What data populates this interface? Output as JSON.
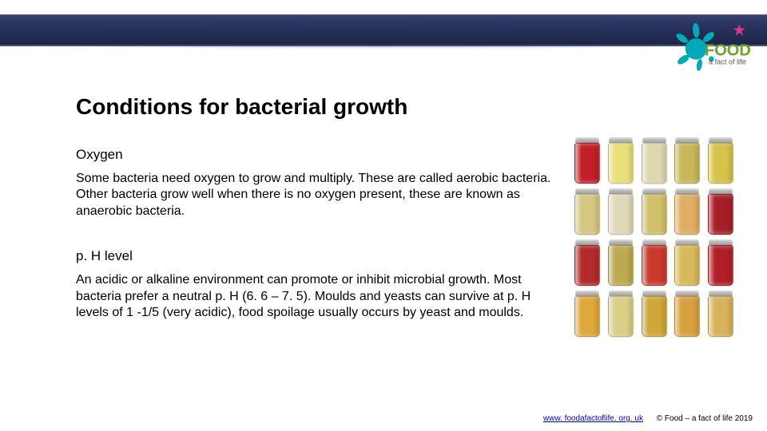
{
  "header": {
    "band_gradient_top": "#3a4470",
    "band_gradient_bottom": "#1e2548",
    "logo": {
      "splash_color": "#00a9b7",
      "text_food": "FOOD",
      "text_food_color": "#6aa329",
      "text_tag": "a fact of life",
      "text_tag_color": "#555555",
      "star_color": "#d63a84"
    }
  },
  "title": "Conditions for bacterial growth",
  "sections": [
    {
      "heading": "Oxygen",
      "body": "Some bacteria need oxygen to grow and multiply. These are called aerobic bacteria. Other bacteria grow well when there is no oxygen present, these are known as anaerobic bacteria."
    },
    {
      "heading": "p. H level",
      "body": "An acidic or alkaline environment can promote or inhibit microbial growth. Most bacteria prefer a neutral p. H (6. 6 – 7. 5).  Moulds and yeasts can survive at p. H levels of 1 -1/5 (very acidic), food spoilage usually occurs by yeast and moulds."
    }
  ],
  "jars": {
    "rows": 4,
    "cols": 5,
    "lid_color": "#b0b0b0",
    "colors": [
      "#c21f2a",
      "#eadf7a",
      "#e0d7b0",
      "#c6b85a",
      "#d7c24a",
      "#d4c780",
      "#e0d9b8",
      "#d0c06a",
      "#dfae63",
      "#a61f27",
      "#b32a2a",
      "#bda94f",
      "#c93a2c",
      "#d6b95a",
      "#b01f28",
      "#e0a83a",
      "#d9cf86",
      "#cfa638",
      "#d8a03e",
      "#d8b15a"
    ]
  },
  "footer": {
    "link_text": "www. foodafactoflife. org. uk",
    "link_href": "#",
    "copyright": "© Food – a fact of life 2019"
  },
  "style": {
    "background": "#ffffff",
    "title_fontsize": 28,
    "subhead_fontsize": 17,
    "body_fontsize": 16,
    "footer_fontsize": 10,
    "text_color": "#000000",
    "link_color": "#0000cc"
  }
}
